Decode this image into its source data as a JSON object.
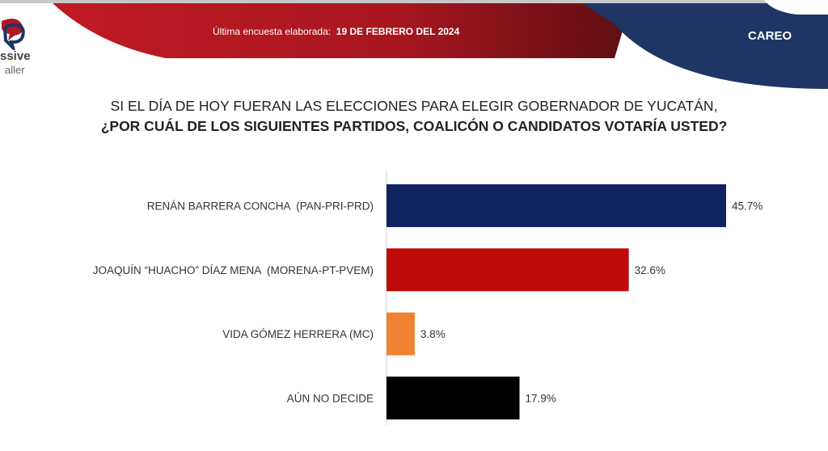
{
  "header": {
    "date_prefix": "Última encuesta elaborada:",
    "date": "19 DE FEBRERO DEL 2024",
    "section": "CAREO",
    "logo_text_line1": "ssive",
    "logo_text_line2": "aller"
  },
  "colors": {
    "red": "#b01822",
    "navy": "#1e3566"
  },
  "chart_data": {
    "type": "bar",
    "orientation": "horizontal",
    "title_line1": "SI EL DÍA DE HOY FUERAN LAS ELECCIONES PARA ELEGIR GOBERNADOR DE YUCATÁN,",
    "title_line2": "¿POR CUÁL DE LOS SIGUIENTES PARTIDOS, COALICÓN O CANDIDATOS VOTARÍA USTED?",
    "categories": [
      "RENÁN BARRERA CONCHA  (PAN-PRI-PRD)",
      "JOAQUÍN “HUACHO” DÍAZ MENA  (MORENA-PT-PVEM)",
      "VIDA GÓMEZ HERRERA (MC)",
      "AÚN NO DECIDE"
    ],
    "values": [
      45.7,
      32.6,
      3.8,
      17.9
    ],
    "value_labels": [
      "45.7%",
      "32.6%",
      "3.8%",
      "17.9%"
    ],
    "bar_colors": [
      "#0f2460",
      "#bf0a0a",
      "#ef8233",
      "#000000"
    ],
    "unit": "%",
    "xlim": [
      0,
      50
    ],
    "grid": false
  }
}
